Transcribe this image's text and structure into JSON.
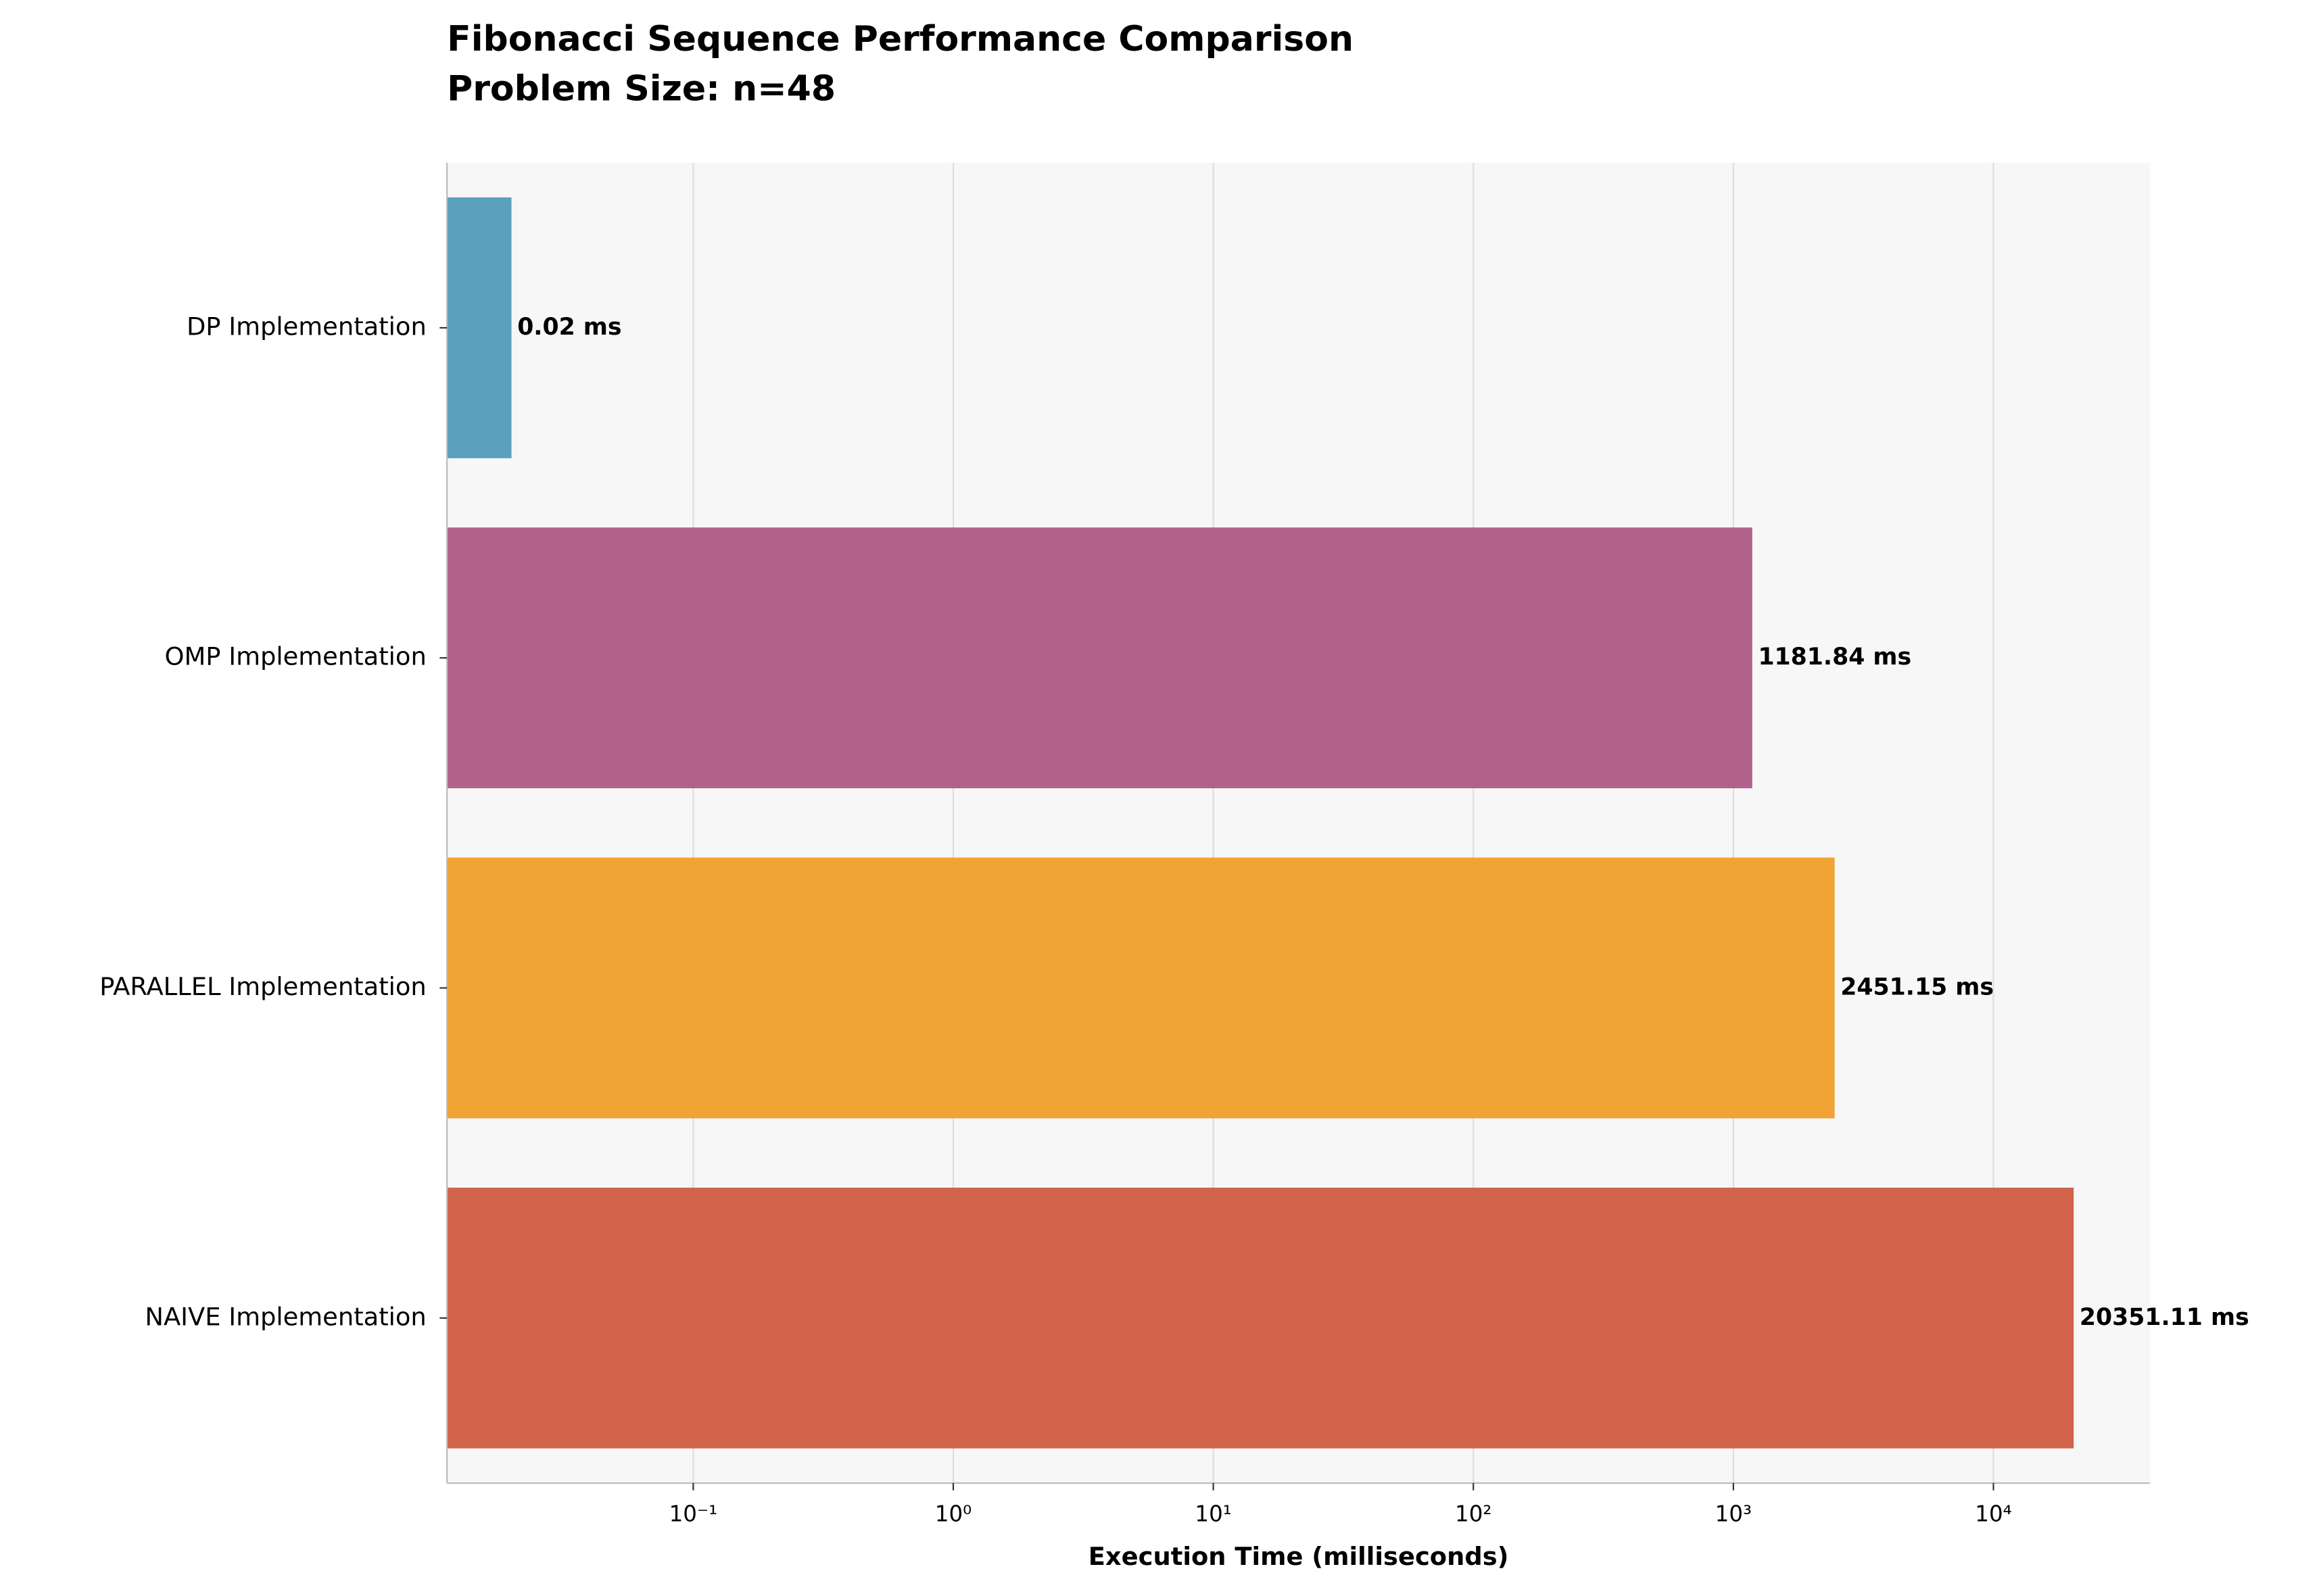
{
  "chart_data": {
    "type": "bar",
    "orientation": "horizontal",
    "title": "Fibonacci Sequence Performance Comparison",
    "subtitle": "Problem Size: n=48",
    "x_label": "Execution Time (milliseconds)",
    "categories": [
      "DP Implementation",
      "OMP Implementation",
      "PARALLEL Implementation",
      "NAIVE Implementation"
    ],
    "values": [
      0.02,
      1181.84,
      2451.15,
      20351.11
    ],
    "value_labels": [
      "0.02 ms",
      "1181.84 ms",
      "2451.15 ms",
      "20351.11 ms"
    ],
    "colors": [
      "#5a9fbc",
      "#b0628a",
      "#f0a332",
      "#d1634a"
    ],
    "x_scale": "log",
    "xlim": [
      0.0113,
      40000
    ],
    "xticks": [
      {
        "value": 0.1,
        "label": "10⁻¹"
      },
      {
        "value": 1,
        "label": "10⁰"
      },
      {
        "value": 10,
        "label": "10¹"
      },
      {
        "value": 100,
        "label": "10²"
      },
      {
        "value": 1000,
        "label": "10³"
      },
      {
        "value": 10000,
        "label": "10⁴"
      }
    ],
    "grid": true
  }
}
